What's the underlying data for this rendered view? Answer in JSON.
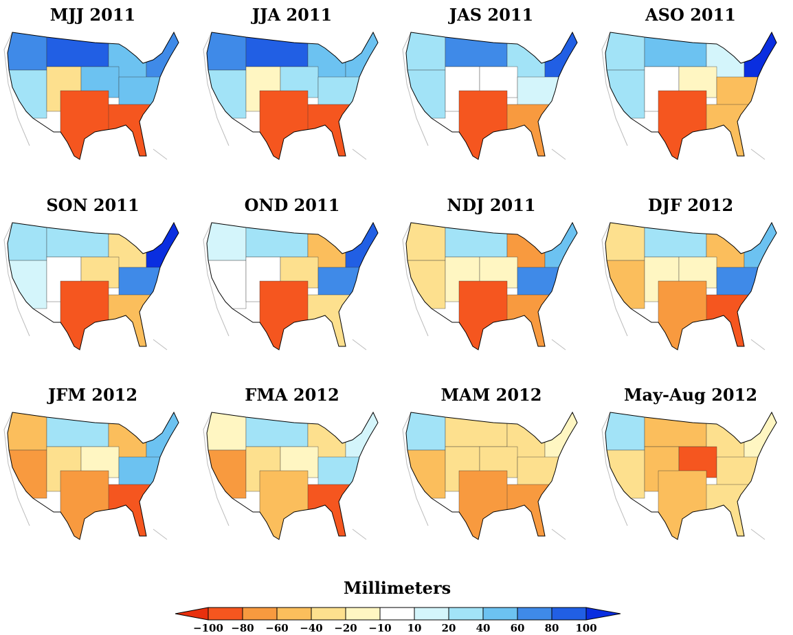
{
  "panels": [
    {
      "title": "MJJ 2011"
    },
    {
      "title": "JJA 2011"
    },
    {
      "title": "JAS 2011"
    },
    {
      "title": "ASO 2011"
    },
    {
      "title": "SON 2011"
    },
    {
      "title": "OND 2011"
    },
    {
      "title": "NDJ 2011"
    },
    {
      "title": "DJF 2012"
    },
    {
      "title": "JFM 2012"
    },
    {
      "title": "FMA 2012"
    },
    {
      "title": "MAM 2012"
    },
    {
      "title": "May-Aug 2012"
    }
  ],
  "colorbar": {
    "title": "Millimeters",
    "ticks": [
      {
        "value": -100,
        "label": "−100"
      },
      {
        "value": -80,
        "label": "−80"
      },
      {
        "value": -60,
        "label": "−60"
      },
      {
        "value": -40,
        "label": "−40"
      },
      {
        "value": -20,
        "label": "−20"
      },
      {
        "value": -10,
        "label": "−10"
      },
      10,
      20,
      40,
      60,
      80,
      100
    ],
    "colors": [
      "#e8300e",
      "#f5561f",
      "#f89a3f",
      "#fbbe5c",
      "#fde08e",
      "#fff6c2",
      "#ffffff",
      "#d4f5fb",
      "#a2e3f7",
      "#6cc2f1",
      "#3f8ae8",
      "#215fe4",
      "#0a2ee0"
    ]
  }
}
